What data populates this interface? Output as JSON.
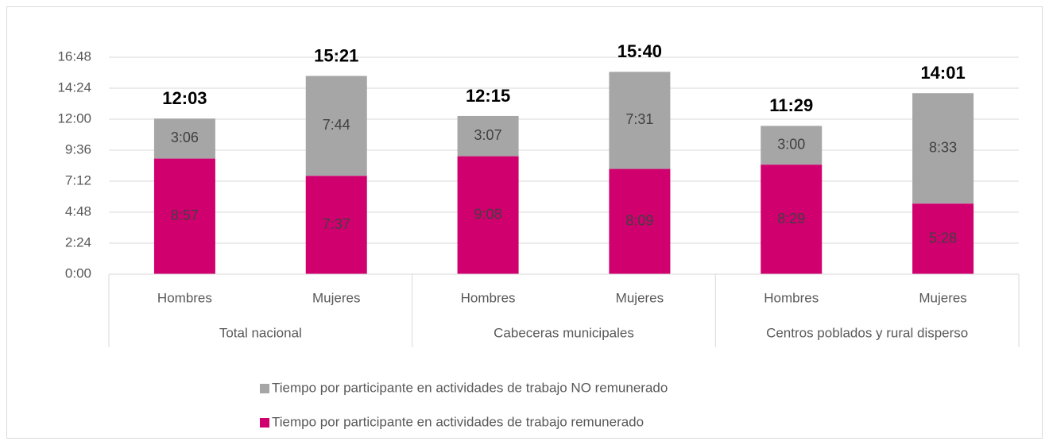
{
  "chart_data": {
    "type": "stacked_bar",
    "categories": [
      "Hombres",
      "Mujeres",
      "Hombres",
      "Mujeres",
      "Hombres",
      "Mujeres"
    ],
    "groups": [
      "Total nacional",
      "Cabeceras municipales",
      "Centros poblados y rural disperso"
    ],
    "series": [
      {
        "name": "Tiempo por participante en actividades de trabajo remunerado",
        "color": "#d0006f",
        "values": [
          537,
          457,
          548,
          489,
          509,
          328
        ],
        "value_labels": [
          "8:57",
          "7:37",
          "9:08",
          "8:09",
          "8:29",
          "5:28"
        ]
      },
      {
        "name": "Tiempo por participante en actividades de trabajo NO remunerado",
        "color": "#a6a6a6",
        "values": [
          186,
          464,
          187,
          451,
          180,
          513
        ],
        "value_labels": [
          "3:06",
          "7:44",
          "3:07",
          "7:31",
          "3:00",
          "8:33"
        ]
      }
    ],
    "totals": [
      723,
      921,
      735,
      940,
      689,
      841
    ],
    "total_labels": [
      "12:03",
      "15:21",
      "12:15",
      "15:40",
      "11:29",
      "14:01"
    ],
    "ylim": [
      0,
      1008
    ],
    "yticks": [
      {
        "value": 0,
        "label": "0:00"
      },
      {
        "value": 144,
        "label": "2:24"
      },
      {
        "value": 288,
        "label": "4:48"
      },
      {
        "value": 432,
        "label": "7:12"
      },
      {
        "value": 576,
        "label": "9:36"
      },
      {
        "value": 720,
        "label": "12:00"
      },
      {
        "value": 864,
        "label": "14:24"
      },
      {
        "value": 1008,
        "label": "16:48"
      }
    ],
    "grid": true
  }
}
